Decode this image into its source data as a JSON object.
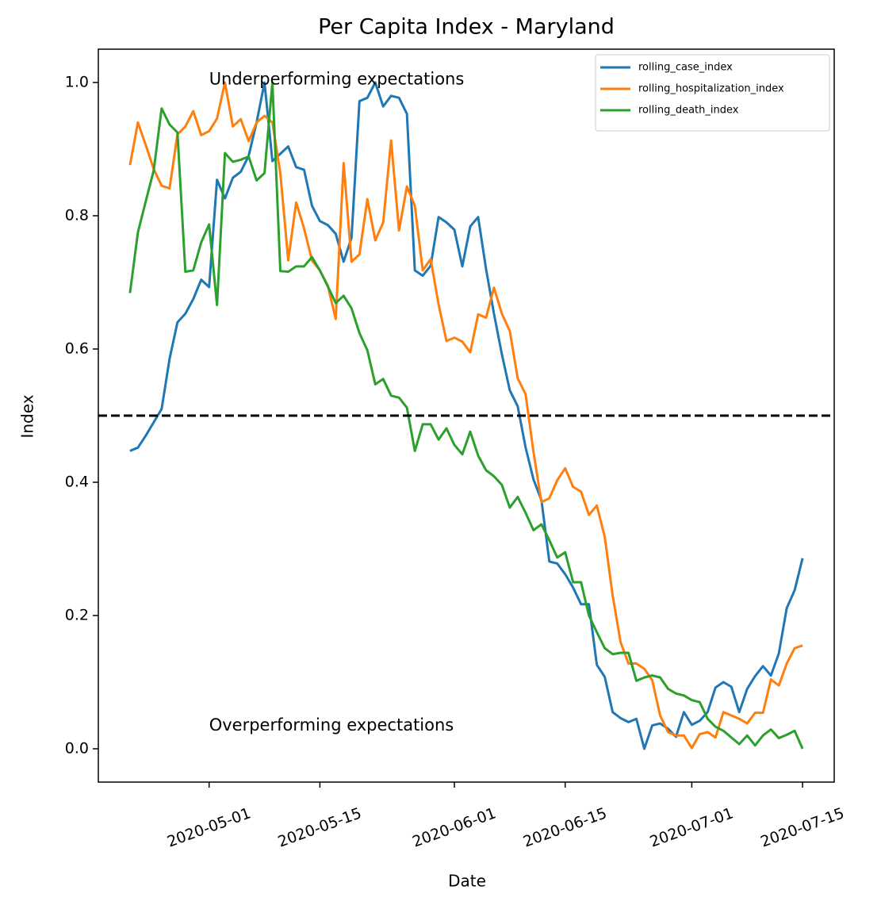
{
  "chart_data": {
    "type": "line",
    "title": "Per Capita Index - Maryland",
    "xlabel": "Date",
    "ylabel": "Index",
    "x": [
      "2020-04-21",
      "2020-04-22",
      "2020-04-23",
      "2020-04-24",
      "2020-04-25",
      "2020-04-26",
      "2020-04-27",
      "2020-04-28",
      "2020-04-29",
      "2020-04-30",
      "2020-05-01",
      "2020-05-02",
      "2020-05-03",
      "2020-05-04",
      "2020-05-05",
      "2020-05-06",
      "2020-05-07",
      "2020-05-08",
      "2020-05-09",
      "2020-05-10",
      "2020-05-11",
      "2020-05-12",
      "2020-05-13",
      "2020-05-14",
      "2020-05-15",
      "2020-05-16",
      "2020-05-17",
      "2020-05-18",
      "2020-05-19",
      "2020-05-20",
      "2020-05-21",
      "2020-05-22",
      "2020-05-23",
      "2020-05-24",
      "2020-05-25",
      "2020-05-26",
      "2020-05-27",
      "2020-05-28",
      "2020-05-29",
      "2020-05-30",
      "2020-05-31",
      "2020-06-01",
      "2020-06-02",
      "2020-06-03",
      "2020-06-04",
      "2020-06-05",
      "2020-06-06",
      "2020-06-07",
      "2020-06-08",
      "2020-06-09",
      "2020-06-10",
      "2020-06-11",
      "2020-06-12",
      "2020-06-13",
      "2020-06-14",
      "2020-06-15",
      "2020-06-16",
      "2020-06-17",
      "2020-06-18",
      "2020-06-19",
      "2020-06-20",
      "2020-06-21",
      "2020-06-22",
      "2020-06-23",
      "2020-06-24",
      "2020-06-25",
      "2020-06-26",
      "2020-06-27",
      "2020-06-28",
      "2020-06-29",
      "2020-06-30",
      "2020-07-01",
      "2020-07-02",
      "2020-07-03",
      "2020-07-04",
      "2020-07-05",
      "2020-07-06",
      "2020-07-07",
      "2020-07-08",
      "2020-07-09",
      "2020-07-10",
      "2020-07-11",
      "2020-07-12",
      "2020-07-13",
      "2020-07-14",
      "2020-07-15"
    ],
    "series": [
      {
        "name": "rolling_case_index",
        "color": "#1f77b4",
        "values": [
          0.447,
          0.452,
          0.47,
          0.49,
          0.51,
          0.585,
          0.64,
          0.653,
          0.675,
          0.704,
          0.693,
          0.854,
          0.826,
          0.857,
          0.866,
          0.89,
          0.94,
          1.0,
          0.882,
          0.893,
          0.904,
          0.873,
          0.869,
          0.815,
          0.792,
          0.786,
          0.773,
          0.731,
          0.767,
          0.972,
          0.977,
          1.0,
          0.964,
          0.98,
          0.977,
          0.953,
          0.718,
          0.71,
          0.725,
          0.798,
          0.79,
          0.779,
          0.724,
          0.784,
          0.798,
          0.72,
          0.653,
          0.592,
          0.538,
          0.514,
          0.452,
          0.404,
          0.373,
          0.281,
          0.278,
          0.262,
          0.242,
          0.217,
          0.217,
          0.126,
          0.108,
          0.055,
          0.046,
          0.04,
          0.045,
          0.0,
          0.035,
          0.038,
          0.03,
          0.018,
          0.055,
          0.036,
          0.042,
          0.055,
          0.092,
          0.1,
          0.093,
          0.055,
          0.09,
          0.109,
          0.124,
          0.11,
          0.143,
          0.211,
          0.238,
          0.286
        ]
      },
      {
        "name": "rolling_hospitalization_index",
        "color": "#ff7f0e",
        "values": [
          0.876,
          0.94,
          0.906,
          0.87,
          0.845,
          0.841,
          0.922,
          0.934,
          0.957,
          0.921,
          0.927,
          0.946,
          1.0,
          0.934,
          0.945,
          0.912,
          0.94,
          0.95,
          0.94,
          0.864,
          0.733,
          0.82,
          0.781,
          0.733,
          0.718,
          0.695,
          0.645,
          0.879,
          0.731,
          0.742,
          0.825,
          0.763,
          0.79,
          0.913,
          0.778,
          0.844,
          0.815,
          0.718,
          0.735,
          0.667,
          0.612,
          0.617,
          0.611,
          0.595,
          0.652,
          0.647,
          0.692,
          0.653,
          0.627,
          0.556,
          0.532,
          0.445,
          0.37,
          0.376,
          0.403,
          0.421,
          0.393,
          0.386,
          0.351,
          0.365,
          0.318,
          0.23,
          0.16,
          0.128,
          0.128,
          0.12,
          0.103,
          0.05,
          0.025,
          0.02,
          0.02,
          0.001,
          0.022,
          0.025,
          0.017,
          0.055,
          0.05,
          0.045,
          0.038,
          0.054,
          0.054,
          0.104,
          0.095,
          0.128,
          0.151,
          0.155
        ]
      },
      {
        "name": "rolling_death_index",
        "color": "#2ca02c",
        "values": [
          0.684,
          0.775,
          0.822,
          0.868,
          0.961,
          0.937,
          0.925,
          0.716,
          0.718,
          0.76,
          0.787,
          0.666,
          0.894,
          0.881,
          0.884,
          0.889,
          0.853,
          0.864,
          1.0,
          0.717,
          0.716,
          0.724,
          0.724,
          0.738,
          0.718,
          0.694,
          0.669,
          0.68,
          0.661,
          0.624,
          0.598,
          0.547,
          0.555,
          0.53,
          0.527,
          0.512,
          0.447,
          0.487,
          0.487,
          0.464,
          0.481,
          0.456,
          0.442,
          0.476,
          0.44,
          0.418,
          0.409,
          0.396,
          0.362,
          0.378,
          0.354,
          0.328,
          0.337,
          0.313,
          0.287,
          0.295,
          0.25,
          0.25,
          0.2,
          0.175,
          0.151,
          0.142,
          0.144,
          0.144,
          0.102,
          0.107,
          0.11,
          0.107,
          0.09,
          0.083,
          0.08,
          0.073,
          0.07,
          0.045,
          0.033,
          0.027,
          0.017,
          0.007,
          0.02,
          0.005,
          0.02,
          0.029,
          0.016,
          0.021,
          0.027,
          0.0
        ]
      }
    ],
    "xlim": [
      "2020-04-17",
      "2020-07-19"
    ],
    "xticks": [
      "2020-05-01",
      "2020-05-15",
      "2020-06-01",
      "2020-06-15",
      "2020-07-01",
      "2020-07-15"
    ],
    "ylim": [
      -0.05,
      1.05
    ],
    "yticks": [
      {
        "value": 0,
        "label": "0.0"
      },
      0.2,
      0.4,
      0.6,
      0.8,
      {
        "value": 1,
        "label": "1.0"
      }
    ],
    "hline": 0.5,
    "annotations": [
      {
        "text": "Underperforming expectations",
        "x": "2020-05-01",
        "y": 0.99
      },
      {
        "text": "Overperforming expectations",
        "x": "2020-05-01",
        "y": 0.02
      }
    ],
    "legend": "upper right",
    "grid": false
  }
}
